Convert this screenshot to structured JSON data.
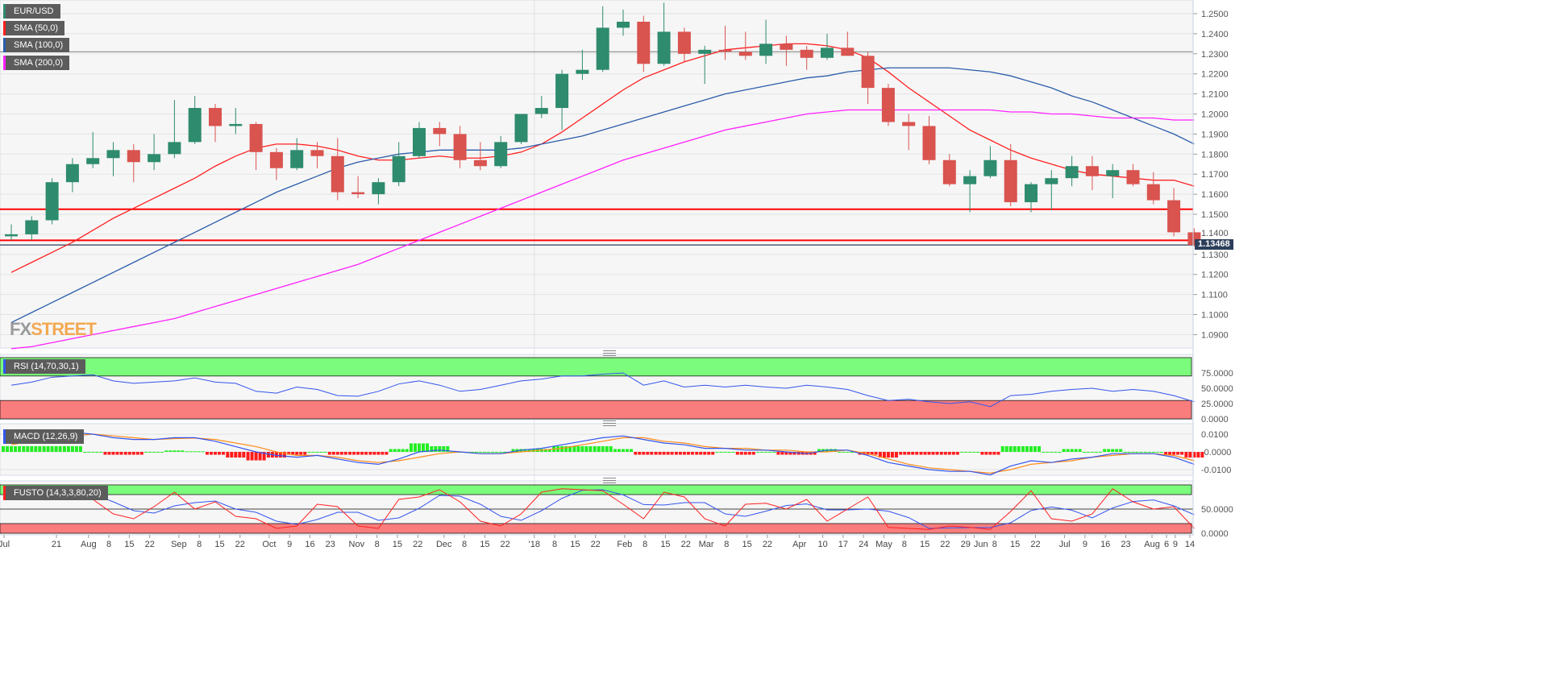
{
  "legend": {
    "symbol": "EUR/USD",
    "sma50": "SMA (50,0)",
    "sma100": "SMA (100,0)",
    "sma200": "SMA (200,0)",
    "rsi": "RSI (14,70,30,1)",
    "macd": "MACD (12,26,9)",
    "fusto": "FUSTO (14,3,3,80,20)"
  },
  "logo": {
    "fx": "FX",
    "street": "STREET"
  },
  "current_price": "1.13468",
  "colors": {
    "up": "#2e8b6e",
    "down": "#d9534f",
    "sma50": "#ff2020",
    "sma100": "#2a5caa",
    "sma200": "#ff20ff",
    "rsi": "#3355ee",
    "overbought": "#7cfc7c",
    "oversold": "#fa7d7d",
    "macd": "#3355ee",
    "signal": "#ff8c1a",
    "hist_pos": "#22ee22",
    "hist_neg": "#ff1a1a"
  },
  "chart_data": [
    {
      "type": "candlestick",
      "title": "EUR/USD",
      "ylim": [
        1.083,
        1.256
      ],
      "yticks": [
        "1.2500",
        "1.2400",
        "1.2300",
        "1.2200",
        "1.2100",
        "1.2000",
        "1.1900",
        "1.1800",
        "1.1700",
        "1.1600",
        "1.1500",
        "1.1400",
        "1.1300",
        "1.1200",
        "1.1100",
        "1.1000",
        "1.0900"
      ],
      "horizontal_lines": [
        {
          "value": 1.1525,
          "color": "#ff0000"
        },
        {
          "value": 1.137,
          "color": "#ff0000"
        },
        {
          "value": 1.231,
          "color": "#888888"
        },
        {
          "value": 1.13468,
          "color": "#2c3e5a"
        }
      ],
      "candles": [
        [
          "2017-07-03",
          1.139,
          1.145,
          1.137,
          1.14
        ],
        [
          "2017-07-10",
          1.14,
          1.149,
          1.137,
          1.147
        ],
        [
          "2017-07-17",
          1.147,
          1.168,
          1.145,
          1.166
        ],
        [
          "2017-07-24",
          1.166,
          1.178,
          1.161,
          1.175
        ],
        [
          "2017-07-31",
          1.175,
          1.191,
          1.173,
          1.178
        ],
        [
          "2017-08-07",
          1.178,
          1.186,
          1.169,
          1.182
        ],
        [
          "2017-08-14",
          1.182,
          1.185,
          1.166,
          1.176
        ],
        [
          "2017-08-21",
          1.176,
          1.19,
          1.172,
          1.18
        ],
        [
          "2017-08-28",
          1.18,
          1.207,
          1.178,
          1.186
        ],
        [
          "2017-09-04",
          1.186,
          1.209,
          1.185,
          1.203
        ],
        [
          "2017-09-11",
          1.203,
          1.205,
          1.186,
          1.194
        ],
        [
          "2017-09-18",
          1.194,
          1.203,
          1.19,
          1.195
        ],
        [
          "2017-09-25",
          1.195,
          1.196,
          1.172,
          1.181
        ],
        [
          "2017-10-02",
          1.181,
          1.183,
          1.167,
          1.173
        ],
        [
          "2017-10-09",
          1.173,
          1.188,
          1.172,
          1.182
        ],
        [
          "2017-10-16",
          1.182,
          1.186,
          1.173,
          1.179
        ],
        [
          "2017-10-23",
          1.179,
          1.188,
          1.157,
          1.161
        ],
        [
          "2017-10-30",
          1.161,
          1.169,
          1.158,
          1.16
        ],
        [
          "2017-11-06",
          1.16,
          1.168,
          1.155,
          1.166
        ],
        [
          "2017-11-13",
          1.166,
          1.186,
          1.164,
          1.179
        ],
        [
          "2017-11-20",
          1.179,
          1.196,
          1.178,
          1.193
        ],
        [
          "2017-11-27",
          1.193,
          1.196,
          1.184,
          1.19
        ],
        [
          "2017-12-04",
          1.19,
          1.194,
          1.173,
          1.177
        ],
        [
          "2017-12-11",
          1.177,
          1.186,
          1.172,
          1.174
        ],
        [
          "2017-12-18",
          1.174,
          1.189,
          1.173,
          1.186
        ],
        [
          "2017-12-25",
          1.186,
          1.2,
          1.185,
          1.2
        ],
        [
          "2018-01-01",
          1.2,
          1.209,
          1.198,
          1.203
        ],
        [
          "2018-01-08",
          1.203,
          1.222,
          1.192,
          1.22
        ],
        [
          "2018-01-15",
          1.22,
          1.232,
          1.217,
          1.222
        ],
        [
          "2018-01-22",
          1.222,
          1.2537,
          1.221,
          1.243
        ],
        [
          "2018-01-29",
          1.243,
          1.252,
          1.239,
          1.246
        ],
        [
          "2018-02-05",
          1.246,
          1.249,
          1.221,
          1.225
        ],
        [
          "2018-02-12",
          1.225,
          1.2555,
          1.224,
          1.241
        ],
        [
          "2018-02-19",
          1.241,
          1.243,
          1.226,
          1.23
        ],
        [
          "2018-02-26",
          1.23,
          1.234,
          1.215,
          1.232
        ],
        [
          "2018-03-05",
          1.232,
          1.244,
          1.227,
          1.231
        ],
        [
          "2018-03-12",
          1.231,
          1.241,
          1.227,
          1.229
        ],
        [
          "2018-03-19",
          1.229,
          1.247,
          1.225,
          1.235
        ],
        [
          "2018-03-26",
          1.235,
          1.239,
          1.224,
          1.232
        ],
        [
          "2018-04-02",
          1.232,
          1.234,
          1.222,
          1.228
        ],
        [
          "2018-04-09",
          1.228,
          1.24,
          1.227,
          1.233
        ],
        [
          "2018-04-16",
          1.233,
          1.241,
          1.229,
          1.229
        ],
        [
          "2018-04-23",
          1.229,
          1.231,
          1.205,
          1.213
        ],
        [
          "2018-04-30",
          1.213,
          1.215,
          1.194,
          1.196
        ],
        [
          "2018-05-07",
          1.196,
          1.2,
          1.182,
          1.194
        ],
        [
          "2018-05-14",
          1.194,
          1.199,
          1.175,
          1.177
        ],
        [
          "2018-05-21",
          1.177,
          1.18,
          1.164,
          1.165
        ],
        [
          "2018-05-28",
          1.165,
          1.172,
          1.151,
          1.169
        ],
        [
          "2018-06-04",
          1.169,
          1.184,
          1.168,
          1.177
        ],
        [
          "2018-06-11",
          1.177,
          1.185,
          1.154,
          1.156
        ],
        [
          "2018-06-18",
          1.156,
          1.166,
          1.151,
          1.165
        ],
        [
          "2018-06-25",
          1.165,
          1.172,
          1.152,
          1.168
        ],
        [
          "2018-07-02",
          1.168,
          1.179,
          1.164,
          1.174
        ],
        [
          "2018-07-09",
          1.174,
          1.179,
          1.162,
          1.169
        ],
        [
          "2018-07-16",
          1.169,
          1.175,
          1.158,
          1.172
        ],
        [
          "2018-07-23",
          1.172,
          1.175,
          1.164,
          1.165
        ],
        [
          "2018-07-30",
          1.165,
          1.171,
          1.155,
          1.157
        ],
        [
          "2018-08-06",
          1.157,
          1.163,
          1.139,
          1.141
        ],
        [
          "2018-08-13",
          1.141,
          1.143,
          1.134,
          1.1347
        ]
      ],
      "series": [
        {
          "name": "SMA (50,0)",
          "values": [
            1.121,
            1.126,
            1.131,
            1.136,
            1.142,
            1.148,
            1.153,
            1.158,
            1.163,
            1.168,
            1.174,
            1.179,
            1.183,
            1.185,
            1.185,
            1.184,
            1.182,
            1.179,
            1.177,
            1.177,
            1.178,
            1.179,
            1.178,
            1.178,
            1.179,
            1.181,
            1.185,
            1.191,
            1.198,
            1.205,
            1.212,
            1.218,
            1.222,
            1.226,
            1.229,
            1.232,
            1.233,
            1.234,
            1.235,
            1.235,
            1.234,
            1.232,
            1.228,
            1.221,
            1.213,
            1.206,
            1.199,
            1.192,
            1.187,
            1.182,
            1.178,
            1.175,
            1.172,
            1.17,
            1.169,
            1.168,
            1.167,
            1.167,
            1.164
          ]
        },
        {
          "name": "SMA (100,0)",
          "values": [
            1.096,
            1.101,
            1.106,
            1.111,
            1.116,
            1.121,
            1.126,
            1.131,
            1.136,
            1.141,
            1.146,
            1.151,
            1.156,
            1.161,
            1.165,
            1.169,
            1.173,
            1.176,
            1.178,
            1.18,
            1.181,
            1.182,
            1.182,
            1.182,
            1.182,
            1.183,
            1.185,
            1.187,
            1.189,
            1.192,
            1.195,
            1.198,
            1.201,
            1.204,
            1.207,
            1.21,
            1.212,
            1.214,
            1.216,
            1.218,
            1.219,
            1.221,
            1.222,
            1.223,
            1.223,
            1.223,
            1.223,
            1.222,
            1.221,
            1.219,
            1.216,
            1.213,
            1.209,
            1.206,
            1.202,
            1.198,
            1.194,
            1.19,
            1.185
          ]
        },
        {
          "name": "SMA (200,0)",
          "values": [
            1.083,
            1.084,
            1.086,
            1.088,
            1.09,
            1.092,
            1.094,
            1.096,
            1.098,
            1.101,
            1.104,
            1.107,
            1.11,
            1.113,
            1.116,
            1.119,
            1.122,
            1.125,
            1.129,
            1.133,
            1.137,
            1.141,
            1.145,
            1.149,
            1.153,
            1.157,
            1.161,
            1.165,
            1.169,
            1.173,
            1.177,
            1.18,
            1.183,
            1.186,
            1.189,
            1.192,
            1.194,
            1.196,
            1.198,
            1.2,
            1.201,
            1.202,
            1.202,
            1.202,
            1.202,
            1.202,
            1.202,
            1.202,
            1.202,
            1.201,
            1.201,
            1.2,
            1.2,
            1.199,
            1.198,
            1.198,
            1.198,
            1.197,
            1.197
          ]
        }
      ]
    },
    {
      "type": "line",
      "title": "RSI (14,70,30,1)",
      "ylim": [
        0,
        100
      ],
      "yticks": [
        "75.0000",
        "50.0000",
        "25.0000",
        "0.0000"
      ],
      "bands": {
        "overbought": 70,
        "oversold": 30
      },
      "series": [
        {
          "values": [
            55,
            60,
            68,
            70,
            72,
            62,
            58,
            60,
            62,
            67,
            60,
            58,
            45,
            42,
            52,
            48,
            38,
            37,
            45,
            57,
            62,
            55,
            45,
            48,
            55,
            62,
            65,
            70,
            70,
            73,
            75,
            55,
            62,
            52,
            55,
            52,
            55,
            52,
            50,
            55,
            52,
            48,
            38,
            30,
            32,
            28,
            25,
            28,
            20,
            38,
            40,
            45,
            48,
            50,
            45,
            48,
            45,
            38,
            28
          ]
        }
      ]
    },
    {
      "type": "line",
      "title": "MACD (12,26,9)",
      "ylim": [
        -0.0145,
        0.0145
      ],
      "yticks": [
        "0.0100",
        "-0.0000",
        "-0.0100"
      ],
      "series": [
        {
          "values": [
            0.006,
            0.008,
            0.01,
            0.011,
            0.01,
            0.008,
            0.007,
            0.007,
            0.008,
            0.008,
            0.006,
            0.003,
            0.0,
            -0.002,
            -0.003,
            -0.002,
            -0.004,
            -0.006,
            -0.007,
            -0.004,
            0.0,
            0.001,
            0.0,
            -0.001,
            -0.001,
            0.001,
            0.002,
            0.004,
            0.006,
            0.008,
            0.009,
            0.007,
            0.005,
            0.004,
            0.002,
            0.002,
            0.001,
            0.001,
            0.0,
            -0.001,
            0.001,
            0.001,
            -0.002,
            -0.006,
            -0.008,
            -0.01,
            -0.011,
            -0.011,
            -0.013,
            -0.008,
            -0.005,
            -0.006,
            -0.004,
            -0.003,
            -0.001,
            -0.001,
            -0.001,
            -0.003,
            -0.007
          ]
        },
        {
          "values": [
            0.004,
            0.006,
            0.008,
            0.009,
            0.01,
            0.009,
            0.008,
            0.007,
            0.0075,
            0.0078,
            0.007,
            0.005,
            0.003,
            0.0,
            -0.002,
            -0.002,
            -0.003,
            -0.005,
            -0.006,
            -0.005,
            -0.003,
            -0.001,
            0.0,
            -0.001,
            -0.001,
            0.0,
            0.001,
            0.002,
            0.004,
            0.006,
            0.008,
            0.008,
            0.006,
            0.005,
            0.003,
            0.002,
            0.002,
            0.001,
            0.001,
            0.0,
            0.0,
            0.001,
            -0.001,
            -0.004,
            -0.007,
            -0.009,
            -0.01,
            -0.011,
            -0.012,
            -0.01,
            -0.007,
            -0.006,
            -0.005,
            -0.003,
            -0.002,
            -0.001,
            -0.001,
            -0.002,
            -0.005
          ]
        }
      ]
    },
    {
      "type": "line",
      "title": "FUSTO (14,3,3,80,20)",
      "ylim": [
        0,
        100
      ],
      "yticks": [
        "50.0000",
        "0.0000"
      ],
      "bands": {
        "overbought": 80,
        "oversold": 20
      },
      "series": [
        {
          "values": [
            80,
            85,
            88,
            85,
            70,
            40,
            30,
            55,
            85,
            50,
            65,
            35,
            30,
            10,
            15,
            60,
            55,
            15,
            10,
            70,
            75,
            90,
            65,
            25,
            15,
            40,
            85,
            92,
            90,
            88,
            60,
            30,
            85,
            75,
            30,
            15,
            60,
            62,
            50,
            70,
            25,
            50,
            75,
            12,
            10,
            8,
            15,
            12,
            8,
            45,
            88,
            30,
            25,
            40,
            92,
            65,
            50,
            55,
            10
          ]
        }
      ]
    }
  ],
  "xaxis": [
    [
      "Jul",
      "2017-07-03"
    ],
    [
      "21",
      "2017-07-21"
    ],
    [
      "Aug",
      "2017-08-01"
    ],
    [
      "8",
      "2017-08-08"
    ],
    [
      "15",
      "2017-08-15"
    ],
    [
      "22",
      "2017-08-22"
    ],
    [
      "Sep",
      "2017-09-01"
    ],
    [
      "8",
      "2017-09-08"
    ],
    [
      "15",
      "2017-09-15"
    ],
    [
      "22",
      "2017-09-22"
    ],
    [
      "Oct",
      "2017-10-02"
    ],
    [
      "9",
      "2017-10-09"
    ],
    [
      "16",
      "2017-10-16"
    ],
    [
      "23",
      "2017-10-23"
    ],
    [
      "Nov",
      "2017-11-01"
    ],
    [
      "8",
      "2017-11-08"
    ],
    [
      "15",
      "2017-11-15"
    ],
    [
      "22",
      "2017-11-22"
    ],
    [
      "Dec",
      "2017-12-01"
    ],
    [
      "8",
      "2017-12-08"
    ],
    [
      "15",
      "2017-12-15"
    ],
    [
      "22",
      "2017-12-22"
    ],
    [
      "'18",
      "2018-01-01"
    ],
    [
      "8",
      "2018-01-08"
    ],
    [
      "15",
      "2018-01-15"
    ],
    [
      "22",
      "2018-01-22"
    ],
    [
      "Feb",
      "2018-02-01"
    ],
    [
      "8",
      "2018-02-08"
    ],
    [
      "15",
      "2018-02-15"
    ],
    [
      "22",
      "2018-02-22"
    ],
    [
      "Mar",
      "2018-03-01"
    ],
    [
      "8",
      "2018-03-08"
    ],
    [
      "15",
      "2018-03-15"
    ],
    [
      "22",
      "2018-03-22"
    ],
    [
      "Apr",
      "2018-04-02"
    ],
    [
      "10",
      "2018-04-10"
    ],
    [
      "17",
      "2018-04-17"
    ],
    [
      "24",
      "2018-04-24"
    ],
    [
      "May",
      "2018-05-01"
    ],
    [
      "8",
      "2018-05-08"
    ],
    [
      "15",
      "2018-05-15"
    ],
    [
      "22",
      "2018-05-22"
    ],
    [
      "29",
      "2018-05-29"
    ],
    [
      "Jun",
      "2018-06-01"
    ],
    [
      "8",
      "2018-06-08"
    ],
    [
      "15",
      "2018-06-15"
    ],
    [
      "22",
      "2018-06-22"
    ],
    [
      "Jul",
      "2018-07-02"
    ],
    [
      "9",
      "2018-07-09"
    ],
    [
      "16",
      "2018-07-16"
    ],
    [
      "23",
      "2018-07-23"
    ],
    [
      "Aug",
      "2018-08-01"
    ],
    [
      "6",
      "2018-08-06"
    ],
    [
      "9",
      "2018-08-09"
    ],
    [
      "14",
      "2018-08-14"
    ]
  ]
}
